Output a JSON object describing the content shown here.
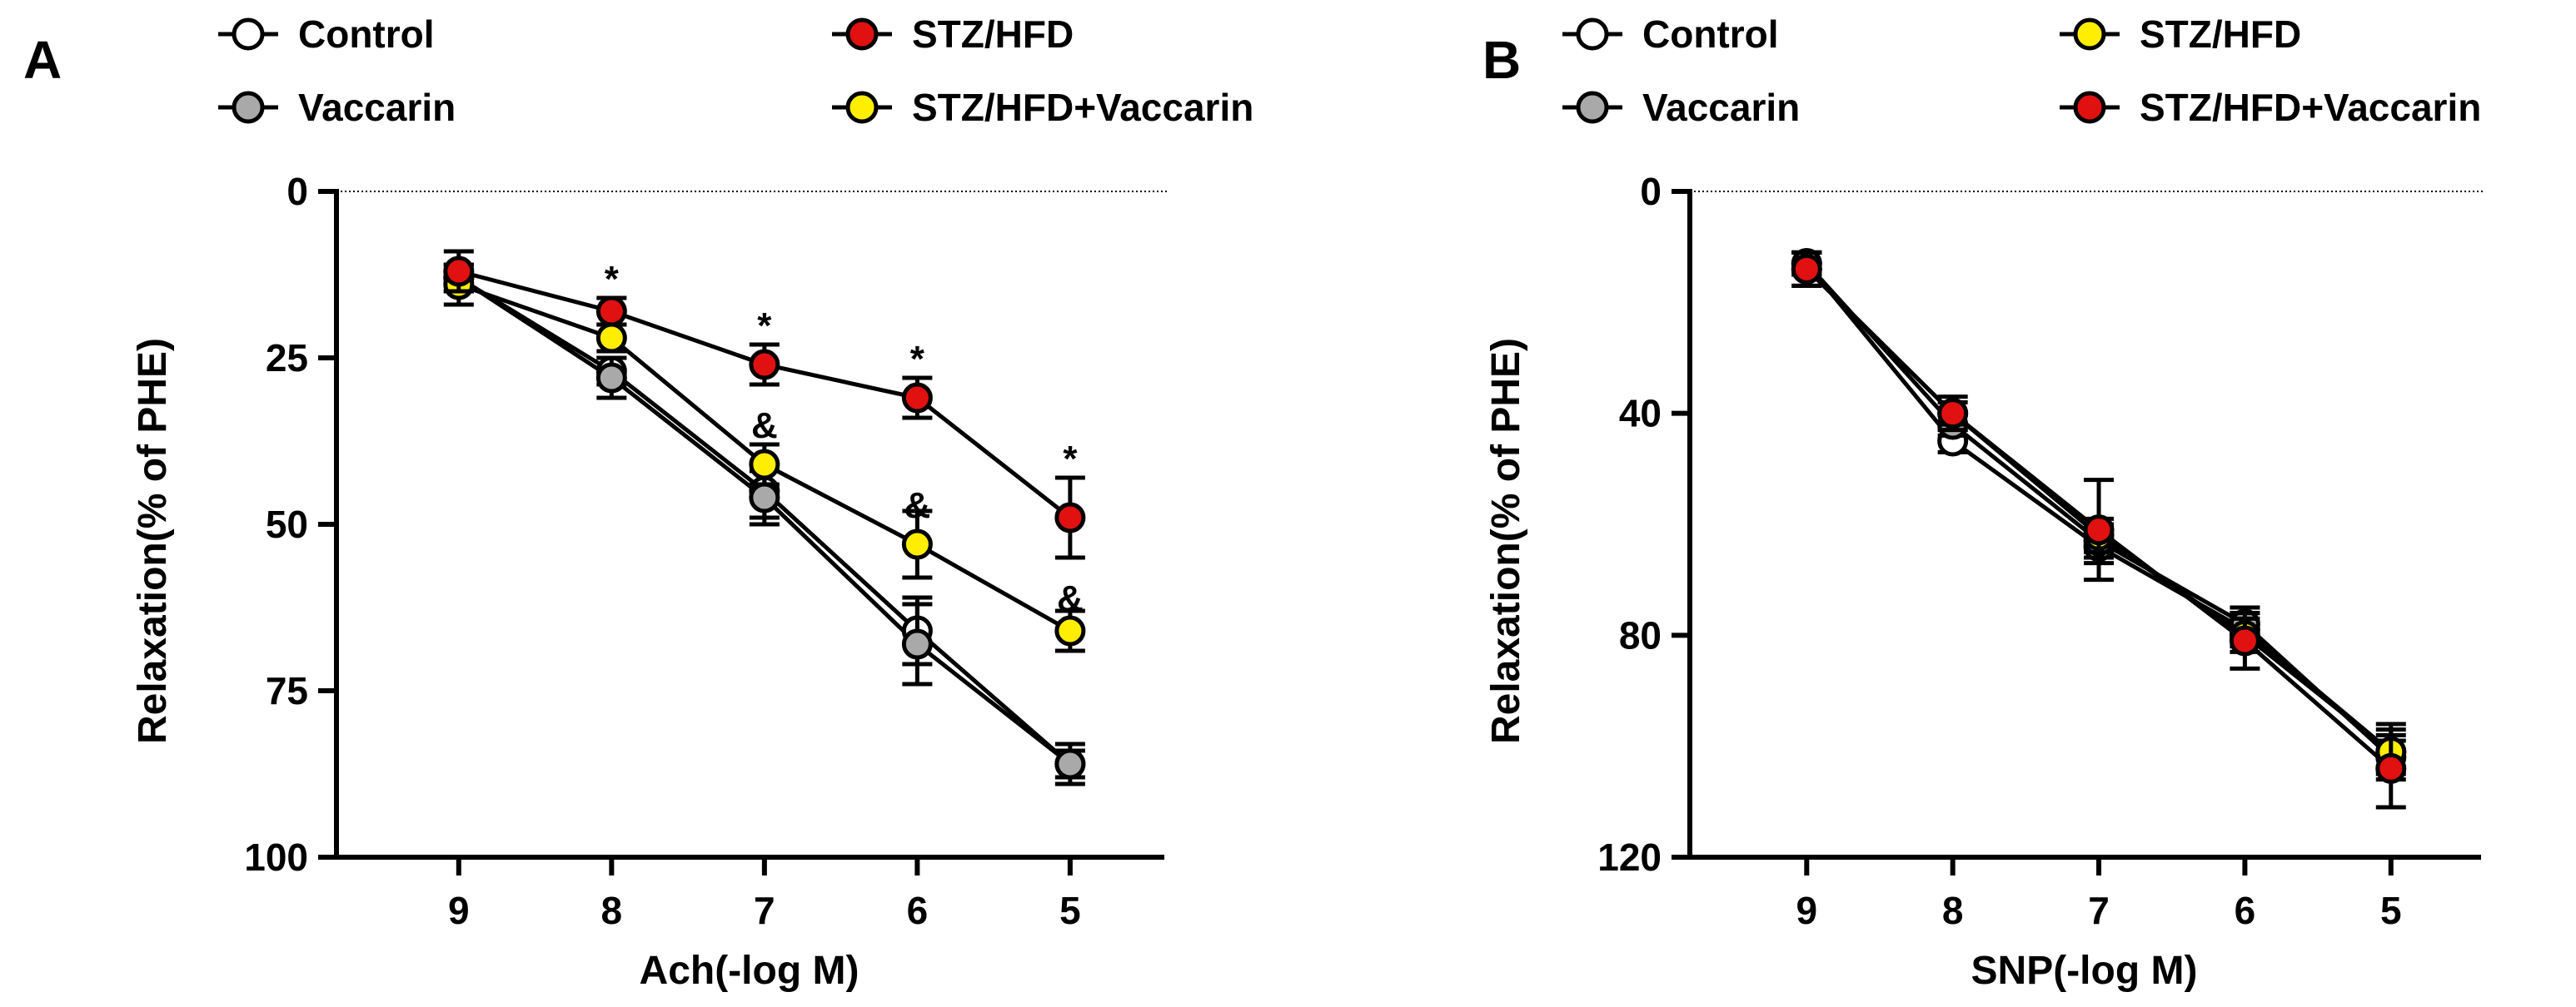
{
  "chart_data": [
    {
      "type": "line",
      "panel_label": "A",
      "xlabel": "Ach(-log M)",
      "ylabel": "Relaxation(% of PHE)",
      "x": [
        9,
        8,
        7,
        6,
        5
      ],
      "xlim": [
        9.8,
        4.4
      ],
      "ylim": [
        0,
        100
      ],
      "y_inverted": true,
      "yticks": [
        0,
        25,
        50,
        75,
        100
      ],
      "zero_reference_line": "dotted",
      "legend": [
        {
          "name": "Control",
          "marker_color": "#ffffff"
        },
        {
          "name": "STZ/HFD",
          "marker_color": "#e11111"
        },
        {
          "name": "Vaccarin",
          "marker_color": "#a9a9a9"
        },
        {
          "name": "STZ/HFD+Vaccarin",
          "marker_color": "#ffee00"
        }
      ],
      "series": [
        {
          "name": "Control",
          "color": "#ffffff",
          "values": [
            13,
            27,
            45,
            66,
            86
          ],
          "errors": [
            2,
            2,
            4,
            5,
            2
          ]
        },
        {
          "name": "Vaccarin",
          "color": "#a9a9a9",
          "values": [
            13,
            28,
            46,
            68,
            86
          ],
          "errors": [
            2,
            3,
            4,
            6,
            3
          ]
        },
        {
          "name": "STZ/HFD+Vaccarin",
          "color": "#ffee00",
          "values": [
            14,
            22,
            41,
            53,
            66
          ],
          "errors": [
            3,
            2,
            3,
            5,
            3
          ]
        },
        {
          "name": "STZ/HFD",
          "color": "#e11111",
          "values": [
            12,
            18,
            26,
            31,
            49
          ],
          "errors": [
            3,
            2,
            3,
            3,
            6
          ]
        }
      ],
      "annotations": [
        {
          "text": "*",
          "x": 8,
          "y": 13
        },
        {
          "text": "*",
          "x": 7,
          "y": 20
        },
        {
          "text": "*",
          "x": 6,
          "y": 25
        },
        {
          "text": "*",
          "x": 5,
          "y": 40
        },
        {
          "text": "&",
          "x": 7,
          "y": 35
        },
        {
          "text": "&",
          "x": 6,
          "y": 47
        },
        {
          "text": "&",
          "x": 5,
          "y": 61
        }
      ]
    },
    {
      "type": "line",
      "panel_label": "B",
      "xlabel": "SNP(-log M)",
      "ylabel": "Relaxation(% of PHE)",
      "x": [
        9,
        8,
        7,
        6,
        5
      ],
      "xlim": [
        9.8,
        4.4
      ],
      "ylim": [
        0,
        120
      ],
      "y_inverted": true,
      "yticks": [
        0,
        40,
        80,
        120
      ],
      "zero_reference_line": "dotted",
      "legend": [
        {
          "name": "Control",
          "marker_color": "#ffffff"
        },
        {
          "name": "STZ/HFD",
          "marker_color": "#ffee00"
        },
        {
          "name": "Vaccarin",
          "marker_color": "#a9a9a9"
        },
        {
          "name": "STZ/HFD+Vaccarin",
          "marker_color": "#e11111"
        }
      ],
      "series": [
        {
          "name": "Control",
          "color": "#ffffff",
          "values": [
            13,
            45,
            64,
            79,
            101
          ],
          "errors": [
            2,
            2,
            3,
            3,
            3
          ]
        },
        {
          "name": "Vaccarin",
          "color": "#a9a9a9",
          "values": [
            13,
            42,
            63,
            78,
            102
          ],
          "errors": [
            2,
            2,
            3,
            3,
            3
          ]
        },
        {
          "name": "STZ/HFD",
          "color": "#ffee00",
          "values": [
            14,
            40,
            62,
            80,
            101
          ],
          "errors": [
            3,
            2,
            3,
            3,
            5
          ]
        },
        {
          "name": "STZ/HFD+Vaccarin",
          "color": "#e11111",
          "values": [
            14,
            40,
            61,
            81,
            104
          ],
          "errors": [
            3,
            3,
            9,
            5,
            7
          ]
        }
      ],
      "annotations": []
    }
  ]
}
